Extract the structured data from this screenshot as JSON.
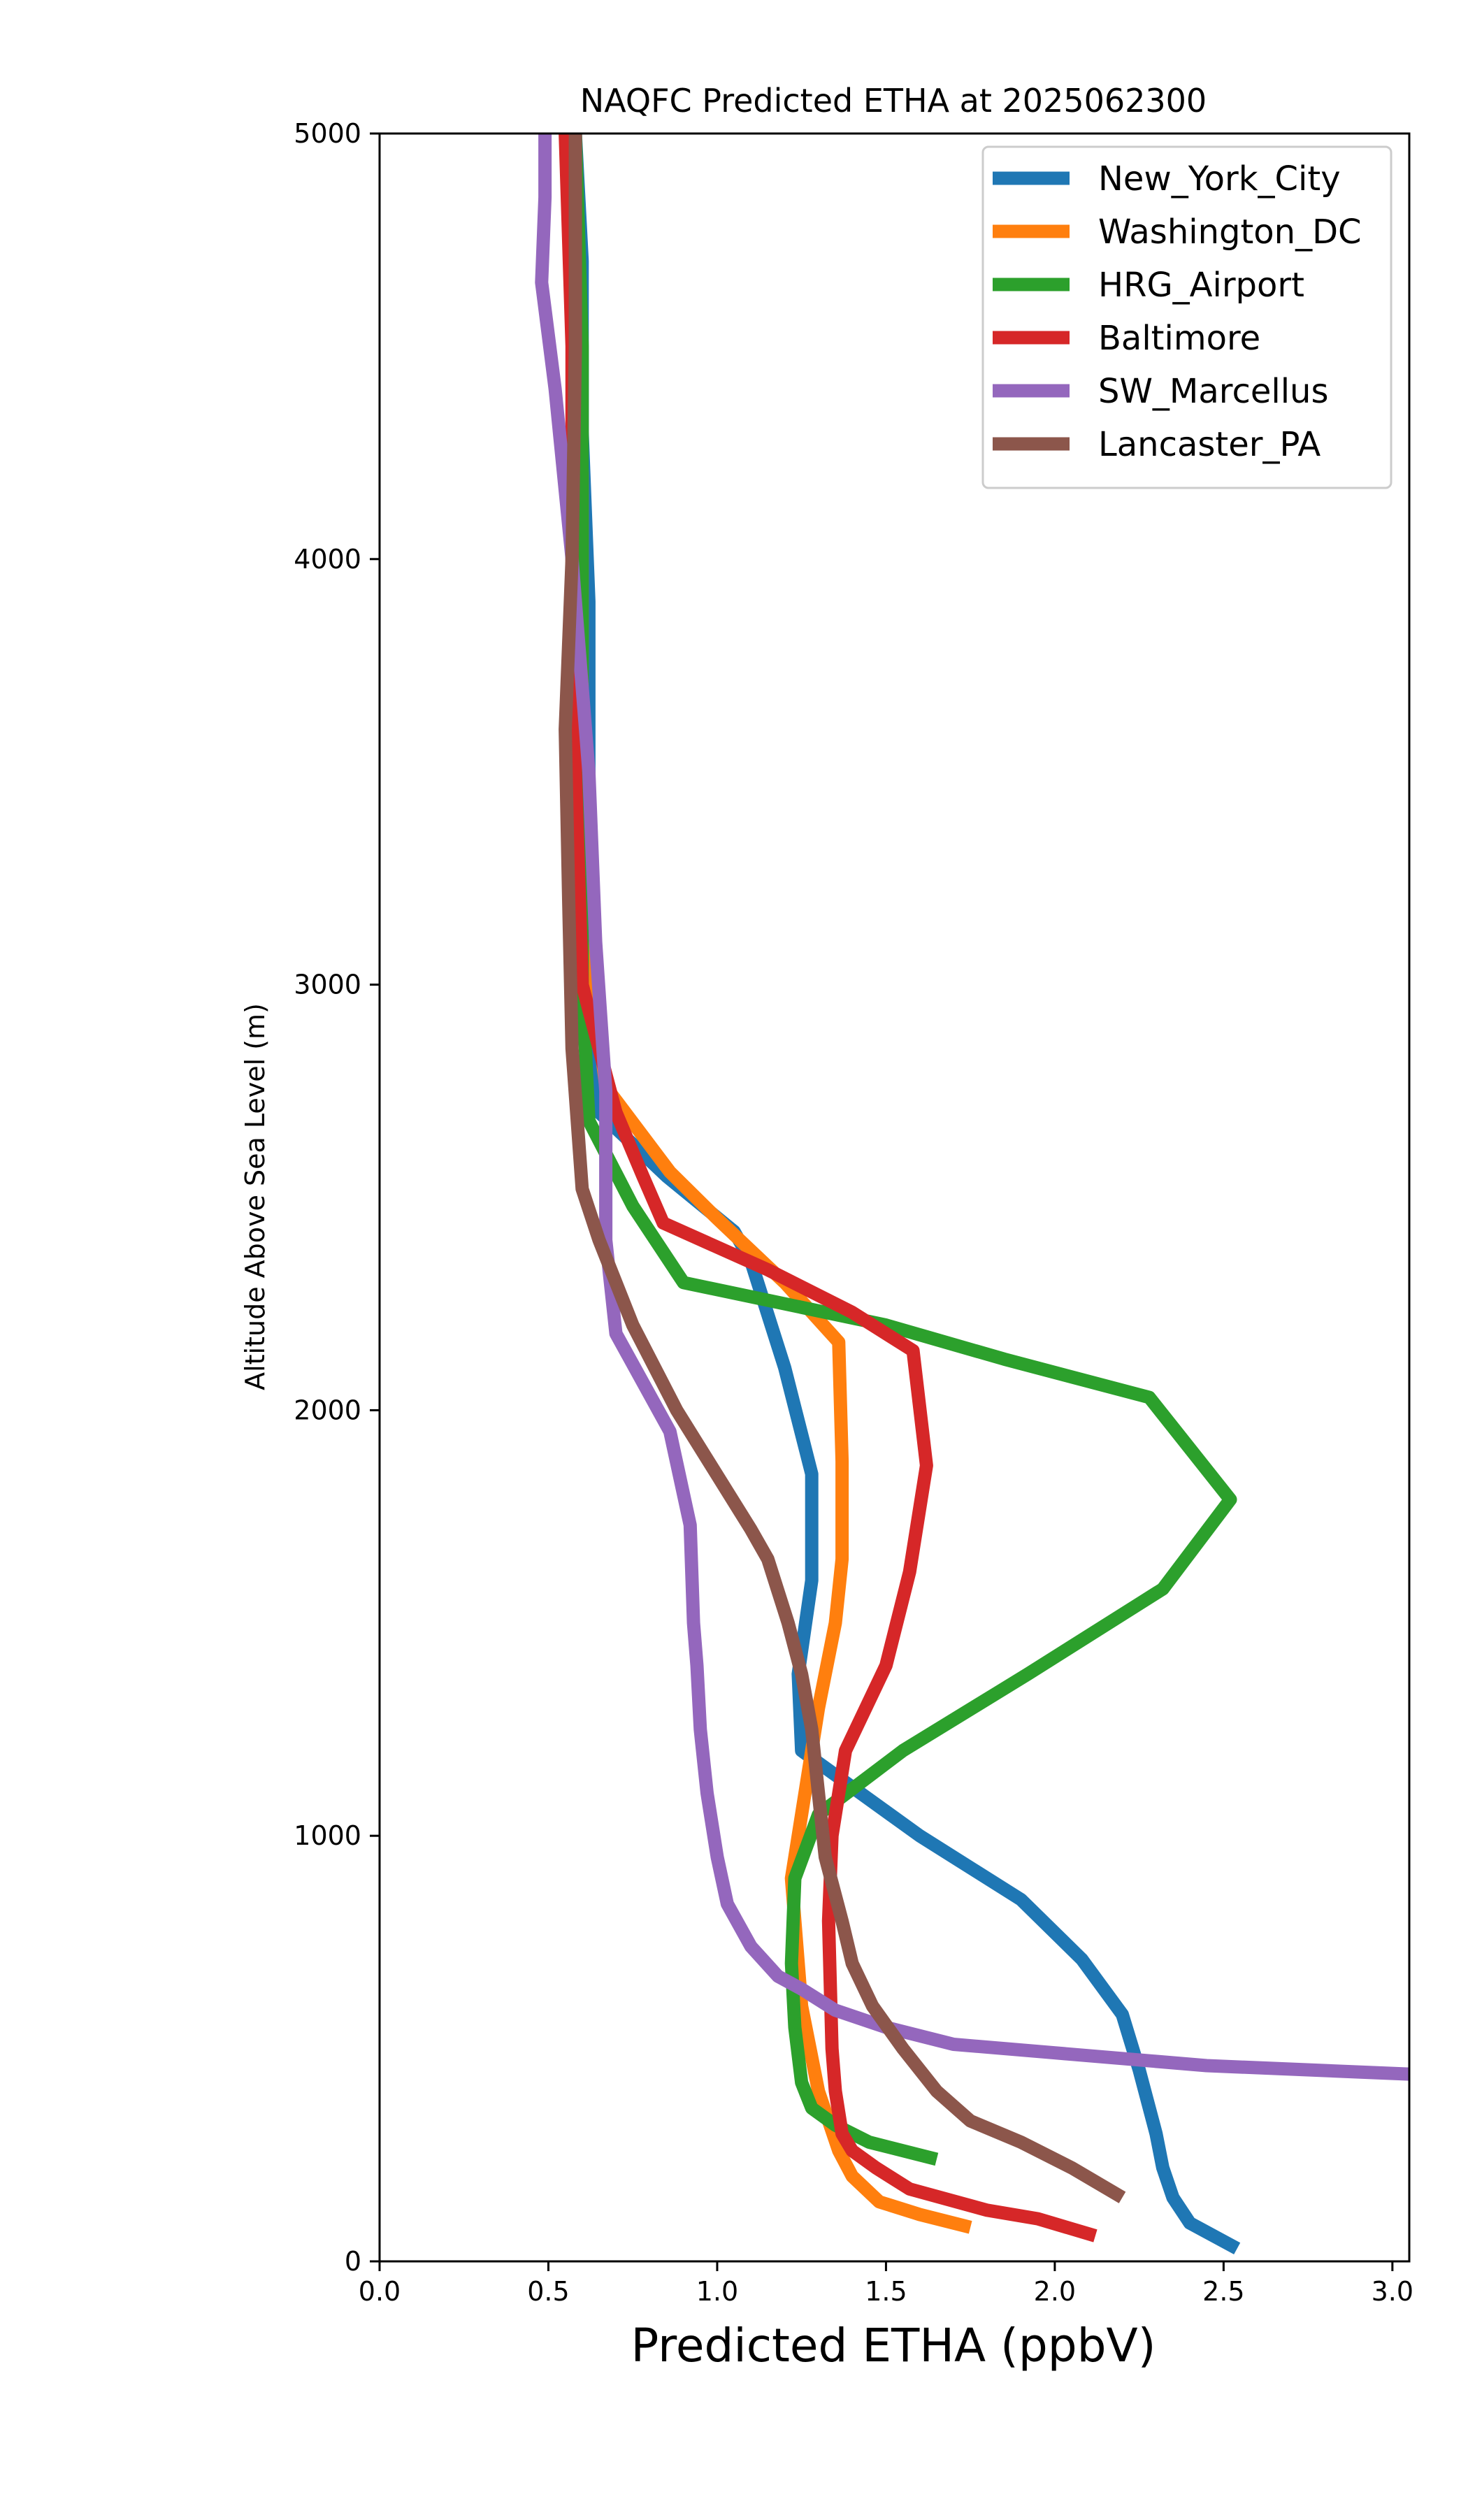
{
  "chart_data": {
    "type": "line",
    "title": "NAQFC Predicted ETHA at 2025062300",
    "xlabel": "Predicted ETHA (ppbV)",
    "ylabel": "Altitude Above Sea Level (m)",
    "xlim": [
      0.0,
      3.05
    ],
    "ylim": [
      0,
      5000
    ],
    "xticks": [
      "0.0",
      "0.5",
      "1.0",
      "1.5",
      "2.0",
      "2.5",
      "3.0"
    ],
    "yticks": [
      "0",
      "1000",
      "2000",
      "3000",
      "4000",
      "5000"
    ],
    "grid": false,
    "legend_position": "top-right",
    "series": [
      {
        "name": "New_York_City",
        "color": "#1f77b4",
        "points": [
          [
            2.54,
            30
          ],
          [
            2.4,
            90
          ],
          [
            2.35,
            150
          ],
          [
            2.32,
            220
          ],
          [
            2.3,
            300
          ],
          [
            2.25,
            450
          ],
          [
            2.2,
            580
          ],
          [
            2.08,
            710
          ],
          [
            1.9,
            850
          ],
          [
            1.6,
            1000
          ],
          [
            1.25,
            1200
          ],
          [
            1.24,
            1380
          ],
          [
            1.28,
            1600
          ],
          [
            1.28,
            1850
          ],
          [
            1.2,
            2100
          ],
          [
            1.1,
            2350
          ],
          [
            1.05,
            2420
          ],
          [
            0.85,
            2550
          ],
          [
            0.65,
            2700
          ],
          [
            0.61,
            2900
          ],
          [
            0.62,
            3200
          ],
          [
            0.62,
            3500
          ],
          [
            0.62,
            3900
          ],
          [
            0.6,
            4300
          ],
          [
            0.6,
            4700
          ],
          [
            0.58,
            5000
          ]
        ]
      },
      {
        "name": "Washington_DC",
        "color": "#ff7f0e",
        "points": [
          [
            1.75,
            80
          ],
          [
            1.6,
            110
          ],
          [
            1.48,
            140
          ],
          [
            1.4,
            200
          ],
          [
            1.36,
            260
          ],
          [
            1.3,
            400
          ],
          [
            1.25,
            600
          ],
          [
            1.22,
            900
          ],
          [
            1.25,
            1050
          ],
          [
            1.3,
            1300
          ],
          [
            1.35,
            1500
          ],
          [
            1.37,
            1650
          ],
          [
            1.37,
            1880
          ],
          [
            1.36,
            2160
          ],
          [
            1.2,
            2300
          ],
          [
            1.0,
            2450
          ],
          [
            0.86,
            2560
          ],
          [
            0.67,
            2760
          ],
          [
            0.64,
            2950
          ],
          [
            0.61,
            3300
          ],
          [
            0.6,
            3700
          ],
          [
            0.6,
            4200
          ],
          [
            0.58,
            4650
          ],
          [
            0.57,
            5000
          ]
        ]
      },
      {
        "name": "HRG_Airport",
        "color": "#2ca02c",
        "points": [
          [
            1.65,
            240
          ],
          [
            1.45,
            280
          ],
          [
            1.35,
            320
          ],
          [
            1.28,
            360
          ],
          [
            1.25,
            420
          ],
          [
            1.23,
            550
          ],
          [
            1.22,
            700
          ],
          [
            1.23,
            900
          ],
          [
            1.3,
            1050
          ],
          [
            1.55,
            1200
          ],
          [
            1.92,
            1380
          ],
          [
            2.32,
            1580
          ],
          [
            2.52,
            1790
          ],
          [
            2.28,
            2030
          ],
          [
            1.85,
            2120
          ],
          [
            1.5,
            2200
          ],
          [
            0.9,
            2300
          ],
          [
            0.75,
            2480
          ],
          [
            0.62,
            2680
          ],
          [
            0.6,
            3000
          ],
          [
            0.6,
            3500
          ],
          [
            0.6,
            4000
          ],
          [
            0.6,
            4500
          ],
          [
            0.58,
            5000
          ]
        ]
      },
      {
        "name": "Baltimore",
        "color": "#d62728",
        "points": [
          [
            2.12,
            60
          ],
          [
            1.95,
            100
          ],
          [
            1.8,
            120
          ],
          [
            1.57,
            170
          ],
          [
            1.47,
            220
          ],
          [
            1.4,
            260
          ],
          [
            1.37,
            300
          ],
          [
            1.35,
            400
          ],
          [
            1.34,
            500
          ],
          [
            1.33,
            800
          ],
          [
            1.34,
            1000
          ],
          [
            1.38,
            1200
          ],
          [
            1.5,
            1400
          ],
          [
            1.57,
            1620
          ],
          [
            1.62,
            1870
          ],
          [
            1.58,
            2140
          ],
          [
            1.4,
            2230
          ],
          [
            1.15,
            2330
          ],
          [
            0.84,
            2440
          ],
          [
            0.78,
            2550
          ],
          [
            0.7,
            2700
          ],
          [
            0.6,
            3000
          ],
          [
            0.58,
            3500
          ],
          [
            0.57,
            4000
          ],
          [
            0.57,
            4500
          ],
          [
            0.55,
            5000
          ]
        ]
      },
      {
        "name": "SW_Marcellus",
        "color": "#9467bd",
        "points": [
          [
            3.05,
            440
          ],
          [
            2.9,
            445
          ],
          [
            2.45,
            460
          ],
          [
            2.0,
            490
          ],
          [
            1.7,
            510
          ],
          [
            1.5,
            550
          ],
          [
            1.35,
            590
          ],
          [
            1.25,
            640
          ],
          [
            1.18,
            670
          ],
          [
            1.1,
            740
          ],
          [
            1.03,
            840
          ],
          [
            1.0,
            950
          ],
          [
            0.97,
            1100
          ],
          [
            0.95,
            1250
          ],
          [
            0.94,
            1400
          ],
          [
            0.93,
            1500
          ],
          [
            0.92,
            1730
          ],
          [
            0.86,
            1950
          ],
          [
            0.7,
            2180
          ],
          [
            0.67,
            2400
          ],
          [
            0.67,
            2750
          ],
          [
            0.64,
            3100
          ],
          [
            0.62,
            3500
          ],
          [
            0.57,
            4000
          ],
          [
            0.52,
            4400
          ],
          [
            0.48,
            4650
          ],
          [
            0.49,
            4850
          ],
          [
            0.49,
            5000
          ]
        ]
      },
      {
        "name": "Lancaster_PA",
        "color": "#8c564b",
        "points": [
          [
            2.2,
            150
          ],
          [
            2.05,
            220
          ],
          [
            1.9,
            280
          ],
          [
            1.75,
            330
          ],
          [
            1.65,
            400
          ],
          [
            1.55,
            500
          ],
          [
            1.46,
            600
          ],
          [
            1.4,
            700
          ],
          [
            1.37,
            800
          ],
          [
            1.32,
            950
          ],
          [
            1.3,
            1100
          ],
          [
            1.28,
            1250
          ],
          [
            1.25,
            1380
          ],
          [
            1.21,
            1500
          ],
          [
            1.15,
            1650
          ],
          [
            1.1,
            1720
          ],
          [
            0.88,
            2000
          ],
          [
            0.75,
            2200
          ],
          [
            0.65,
            2400
          ],
          [
            0.6,
            2520
          ],
          [
            0.57,
            2850
          ],
          [
            0.56,
            3200
          ],
          [
            0.55,
            3600
          ],
          [
            0.57,
            4000
          ],
          [
            0.58,
            4500
          ],
          [
            0.58,
            5000
          ]
        ]
      }
    ]
  }
}
